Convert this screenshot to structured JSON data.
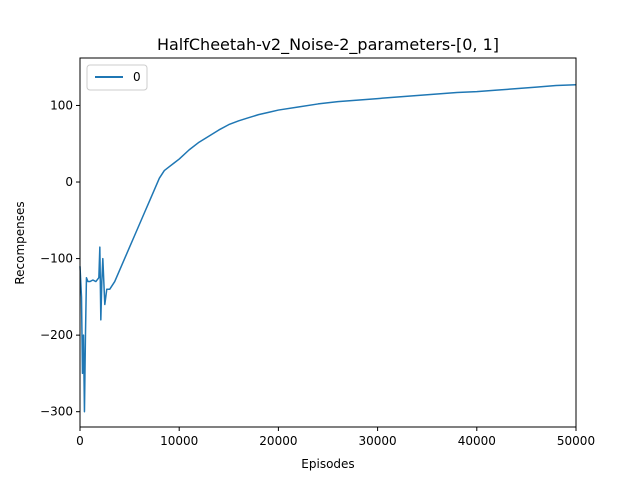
{
  "chart_data": {
    "type": "line",
    "title": "HalfCheetah-v2_Noise-2_parameters-[0, 1]",
    "xlabel": "Episodes",
    "ylabel": "Recompenses",
    "xlim": [
      0,
      50000
    ],
    "ylim": [
      -320,
      162
    ],
    "xticks": [
      0,
      10000,
      20000,
      30000,
      40000,
      50000
    ],
    "yticks": [
      -300,
      -200,
      -100,
      0,
      100
    ],
    "xtick_labels": [
      "0",
      "10000",
      "20000",
      "30000",
      "40000",
      "50000"
    ],
    "ytick_labels": [
      "−300",
      "−200",
      "−100",
      "0",
      "100"
    ],
    "grid": false,
    "legend": {
      "position": "top-left",
      "entries": [
        "0"
      ]
    },
    "series": [
      {
        "name": "0",
        "color": "#1f77b4",
        "x": [
          0,
          150,
          250,
          350,
          450,
          550,
          650,
          800,
          1000,
          1300,
          1600,
          1900,
          2000,
          2100,
          2200,
          2300,
          2500,
          2600,
          2700,
          3000,
          3500,
          4000,
          4500,
          5000,
          5500,
          6000,
          6500,
          7000,
          7500,
          8000,
          8500,
          9000,
          9500,
          10000,
          11000,
          12000,
          13000,
          14000,
          15000,
          16000,
          17000,
          18000,
          19000,
          20000,
          22000,
          24000,
          26000,
          28000,
          30000,
          32000,
          34000,
          36000,
          38000,
          40000,
          42000,
          44000,
          46000,
          48000,
          50000
        ],
        "y": [
          -110,
          -150,
          -250,
          -200,
          -300,
          -200,
          -125,
          -130,
          -130,
          -128,
          -130,
          -125,
          -85,
          -180,
          -130,
          -100,
          -160,
          -150,
          -140,
          -140,
          -130,
          -115,
          -100,
          -85,
          -70,
          -55,
          -40,
          -25,
          -10,
          5,
          15,
          20,
          25,
          30,
          42,
          52,
          60,
          68,
          75,
          80,
          84,
          88,
          91,
          94,
          98,
          102,
          105,
          107,
          109,
          111,
          113,
          115,
          117,
          118,
          120,
          122,
          124,
          126,
          127
        ]
      }
    ]
  }
}
